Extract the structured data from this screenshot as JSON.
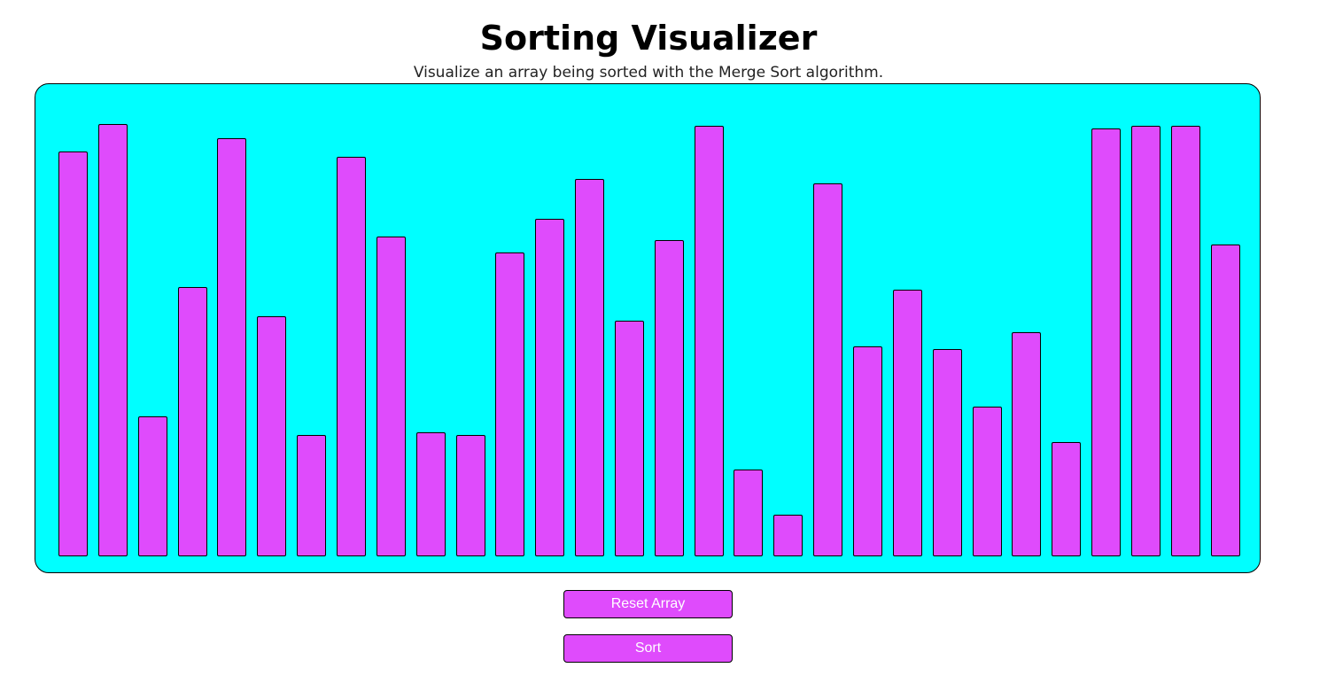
{
  "header": {
    "title": "Sorting Visualizer",
    "subtitle": "Visualize an array being sorted with the Merge Sort algorithm."
  },
  "colors": {
    "panel_background": "#00ffff",
    "bar_fill": "#df4bfc",
    "button_fill": "#df4bfc",
    "button_text": "#ffffff"
  },
  "chart_data": {
    "type": "bar",
    "values": [
      458,
      489,
      158,
      305,
      473,
      272,
      137,
      452,
      362,
      140,
      137,
      344,
      382,
      427,
      267,
      358,
      487,
      98,
      47,
      422,
      237,
      302,
      234,
      169,
      254,
      129,
      484,
      487,
      487,
      353
    ],
    "ylim": [
      0,
      490
    ]
  },
  "controls": {
    "reset_label": "Reset Array",
    "sort_label": "Sort"
  }
}
